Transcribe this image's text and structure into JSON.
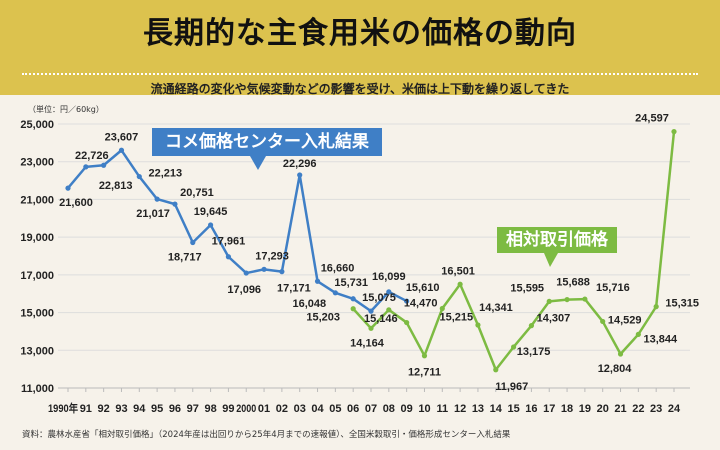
{
  "title": "長期的な主食用米の価格の動向",
  "subtitle": "流通経路の変化や気候変動などの影響を受け、米価は上下動を繰り返してきた",
  "source": "資料：農林水産省「相対取引価格」（2024年産は出回りから25年4月までの速報値）、全国米穀取引・価格形成センター入札結果",
  "chart_data": {
    "type": "line",
    "title": "長期的な主食用米の価格の動向",
    "unit_label": "（単位：円／60kg）",
    "ylim": [
      11000,
      25000
    ],
    "yticks": [
      "11,000",
      "13,000",
      "15,000",
      "17,000",
      "19,000",
      "21,000",
      "23,000",
      "25,000"
    ],
    "ytick_values": [
      11000,
      13000,
      15000,
      17000,
      19000,
      21000,
      23000,
      25000
    ],
    "grid": true,
    "x": [
      1990,
      1991,
      1992,
      1993,
      1994,
      1995,
      1996,
      1997,
      1998,
      1999,
      2000,
      2001,
      2002,
      2003,
      2004,
      2005,
      2006,
      2007,
      2008,
      2009,
      2010,
      2011,
      2012,
      2013,
      2014,
      2015,
      2016,
      2017,
      2018,
      2019,
      2020,
      2021,
      2022,
      2023,
      2024
    ],
    "xtick_labels": [
      "1990年",
      "91",
      "92",
      "93",
      "94",
      "95",
      "96",
      "97",
      "98",
      "99",
      "2000",
      "01",
      "02",
      "03",
      "04",
      "05",
      "06",
      "07",
      "08",
      "09",
      "10",
      "11",
      "12",
      "13",
      "14",
      "15",
      "16",
      "17",
      "18",
      "19",
      "20",
      "21",
      "22",
      "23",
      "24"
    ],
    "series": [
      {
        "name": "コメ価格センター入札結果",
        "color": "#3f7fc6",
        "x": [
          1990,
          1991,
          1992,
          1993,
          1994,
          1995,
          1996,
          1997,
          1998,
          1999,
          2000,
          2001,
          2002,
          2003,
          2004,
          2005,
          2006,
          2007,
          2008,
          2009
        ],
        "values": [
          21600,
          22726,
          22813,
          23607,
          22213,
          21017,
          20751,
          18717,
          19645,
          17961,
          17096,
          17293,
          17171,
          22296,
          16660,
          16048,
          15731,
          15075,
          16099,
          15610
        ],
        "labels": [
          "21,600",
          "22,726",
          "22,813",
          "23,607",
          "22,213",
          "21,017",
          "20,751",
          "18,717",
          "19,645",
          "17,961",
          "17,096",
          "17,293",
          "17,171",
          "22,296",
          "16,660",
          "16,048",
          "15,731",
          "15,075",
          "16,099",
          "15,610"
        ]
      },
      {
        "name": "相対取引価格",
        "color": "#7dbb42",
        "x": [
          2006,
          2007,
          2008,
          2009,
          2010,
          2011,
          2012,
          2013,
          2014,
          2015,
          2016,
          2017,
          2018,
          2019,
          2020,
          2021,
          2022,
          2023,
          2024
        ],
        "values": [
          15203,
          14164,
          15146,
          14470,
          12711,
          15215,
          16501,
          14341,
          11967,
          13175,
          14307,
          15595,
          15688,
          15716,
          14529,
          12804,
          13844,
          15315,
          24597
        ],
        "labels": [
          "15,203",
          "14,164",
          "15,146",
          "14,470",
          "12,711",
          "15,215",
          "16,501",
          "14,341",
          "11,967",
          "13,175",
          "14,307",
          "15,595",
          "15,688",
          "15,716",
          "14,529",
          "12,804",
          "13,844",
          "15,315",
          "24,597"
        ]
      }
    ]
  }
}
